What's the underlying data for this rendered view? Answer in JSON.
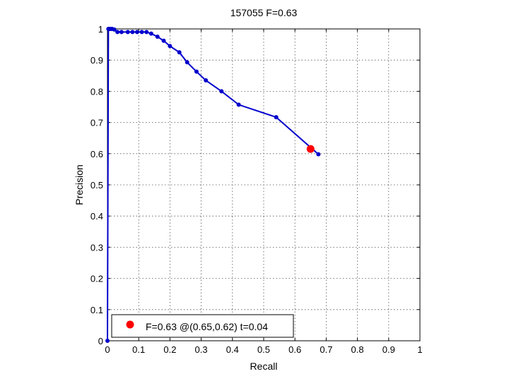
{
  "chart_data": {
    "type": "line",
    "title": "157055 F=0.63",
    "xlabel": "Recall",
    "ylabel": "Precision",
    "xlim": [
      0,
      1
    ],
    "ylim": [
      0,
      1
    ],
    "grid": true,
    "x_ticks": [
      "0",
      "0.1",
      "0.2",
      "0.3",
      "0.4",
      "0.5",
      "0.6",
      "0.7",
      "0.8",
      "0.9",
      "1"
    ],
    "y_ticks": [
      "0",
      "0.1",
      "0.2",
      "0.3",
      "0.4",
      "0.5",
      "0.6",
      "0.7",
      "0.8",
      "0.9",
      "1"
    ],
    "series": [
      {
        "color": "#0000cc",
        "x": [
          0,
          0.003,
          0.006,
          0.01,
          0.015,
          0.022,
          0.032,
          0.045,
          0.065,
          0.08,
          0.095,
          0.11,
          0.125,
          0.14,
          0.16,
          0.18,
          0.2,
          0.23,
          0.255,
          0.285,
          0.315,
          0.365,
          0.42,
          0.54,
          0.675
        ],
        "y": [
          0,
          1,
          1,
          1,
          1,
          0.998,
          0.99,
          0.99,
          0.99,
          0.99,
          0.99,
          0.99,
          0.99,
          0.985,
          0.975,
          0.962,
          0.945,
          0.925,
          0.893,
          0.863,
          0.835,
          0.8,
          0.757,
          0.717,
          0.598
        ]
      }
    ],
    "best_point": {
      "x": 0.65,
      "y": 0.615,
      "color": "#ff0000"
    },
    "legend": {
      "text": "F=0.63 @(0.65,0.62) t=0.04",
      "placement": "bottom-left"
    }
  }
}
